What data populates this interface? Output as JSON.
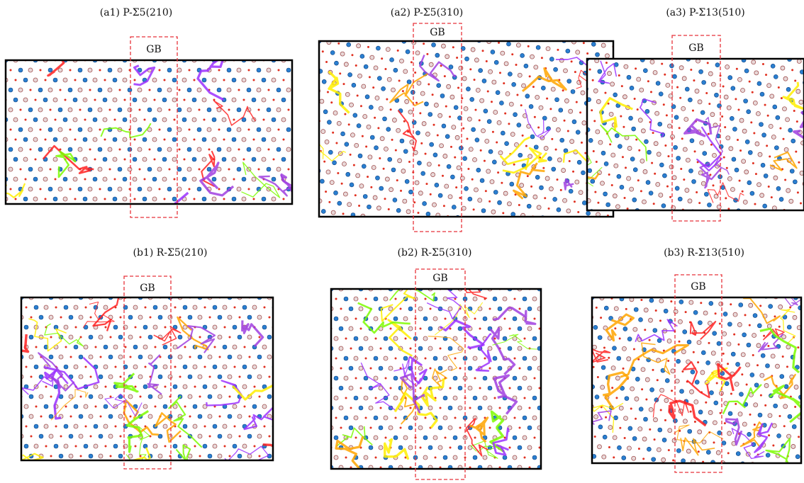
{
  "panels": [
    {
      "label": "(a1) P-Σ5(210)",
      "gb": "GB"
    },
    {
      "label": "(a2) P-Σ5(310)",
      "gb": "GB"
    },
    {
      "label": "(a3) P-Σ13(510)",
      "gb": "GB"
    },
    {
      "label": "(b1) R-Σ5(210)",
      "gb": "GB"
    },
    {
      "label": "(b2) R-Σ5(310)",
      "gb": "GB"
    },
    {
      "label": "(b3) R-Σ13(510)",
      "gb": "GB"
    }
  ]
}
